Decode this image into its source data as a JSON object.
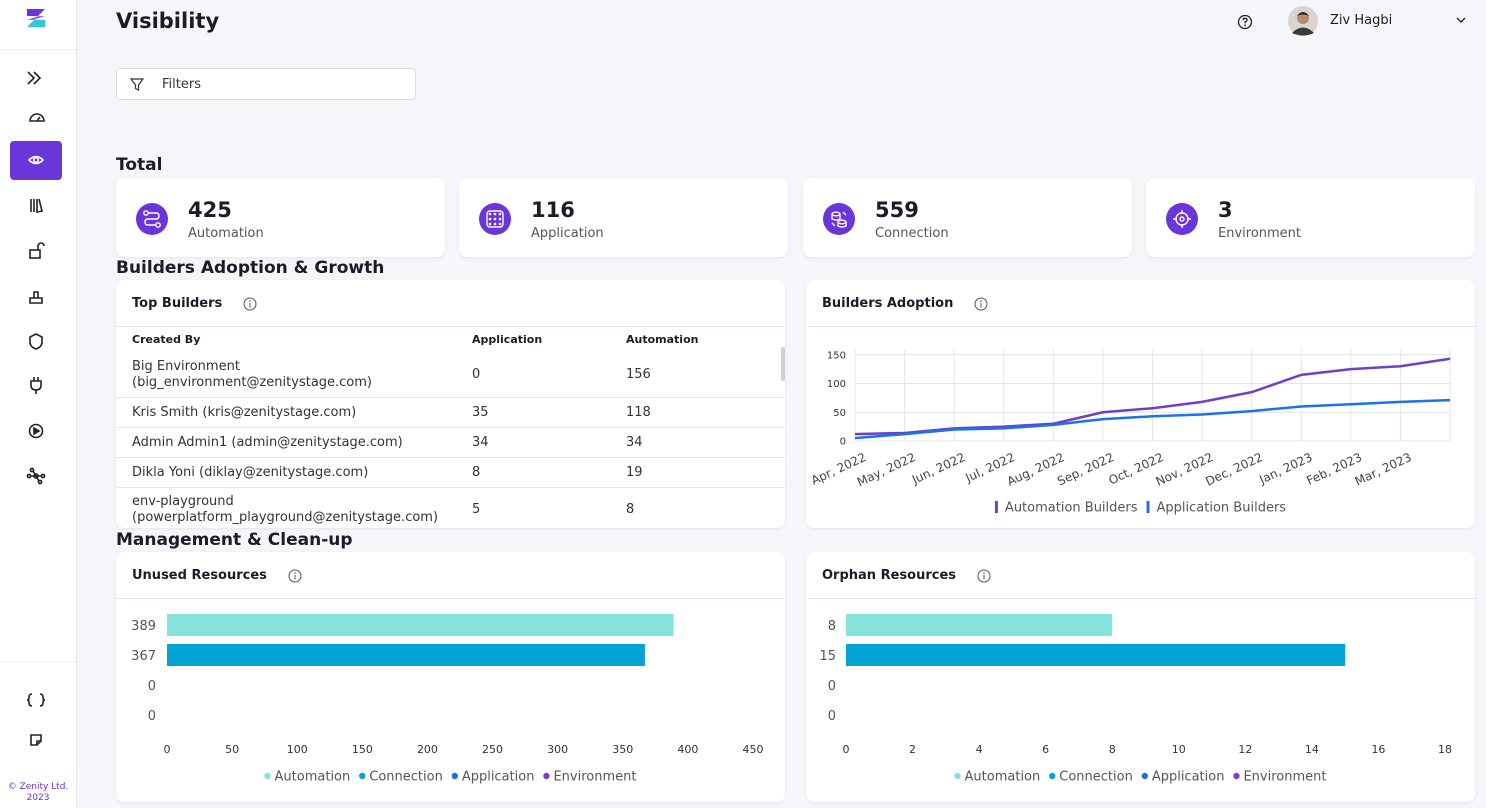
{
  "sidebar": {
    "copyright": "© Zenity Ltd. 2023"
  },
  "header": {
    "title": "Visibility",
    "user": "Ziv Hagbi",
    "filters": "Filters"
  },
  "sections": [
    "Total",
    "Builders Adoption & Growth",
    "Management & Clean-up"
  ],
  "stats": [
    {
      "value": 425,
      "label": "Automation"
    },
    {
      "value": 116,
      "label": "Application"
    },
    {
      "value": 559,
      "label": "Connection"
    },
    {
      "value": 3,
      "label": "Environment"
    }
  ],
  "top_builders": {
    "title": "Top Builders",
    "columns": [
      "Created By",
      "Application",
      "Automation"
    ],
    "rows": [
      [
        "Big Environment (big_environment@zenitystage.com)",
        0,
        156
      ],
      [
        "Kris Smith (kris@zenitystage.com)",
        35,
        118
      ],
      [
        "Admin Admin1 (admin@zenitystage.com)",
        34,
        34
      ],
      [
        "Dikla Yoni (diklay@zenitystage.com)",
        8,
        19
      ],
      [
        "env-playground (powerplatform_playground@zenitystage.com)",
        5,
        8
      ]
    ]
  },
  "chart_data": [
    {
      "type": "line",
      "title": "Builders Adoption",
      "categories": [
        "Apr, 2022",
        "May, 2022",
        "Jun, 2022",
        "Jul, 2022",
        "Aug, 2022",
        "Sep, 2022",
        "Oct, 2022",
        "Nov, 2022",
        "Dec, 2022",
        "Jan, 2023",
        "Feb, 2023",
        "Mar, 2023",
        null
      ],
      "series": [
        {
          "name": "Automation Builders",
          "color": "#6f3fc4",
          "values": [
            12,
            14,
            22,
            25,
            30,
            50,
            57,
            68,
            85,
            115,
            125,
            130,
            143
          ]
        },
        {
          "name": "Application Builders",
          "color": "#1a73e8",
          "values": [
            5,
            12,
            20,
            22,
            28,
            38,
            43,
            46,
            52,
            60,
            64,
            68,
            71
          ]
        }
      ],
      "ylim": [
        0,
        160
      ],
      "yticks": [
        0,
        50,
        100,
        150
      ],
      "grid": true,
      "legend": "bottom"
    },
    {
      "type": "bar",
      "orientation": "horizontal",
      "title": "Unused Resources",
      "categories": [
        "Automation",
        "Connection",
        "Application",
        "Environment"
      ],
      "colors": [
        "#86e3dc",
        "#00a3d3",
        "#1a6ee8",
        "#7b3fd8"
      ],
      "values": [
        389,
        367,
        0,
        0
      ],
      "xlim": [
        0,
        450
      ],
      "xticks": [
        0,
        50,
        100,
        150,
        200,
        250,
        300,
        350,
        400,
        450
      ],
      "legend": "bottom"
    },
    {
      "type": "bar",
      "orientation": "horizontal",
      "title": "Orphan Resources",
      "categories": [
        "Automation",
        "Connection",
        "Application",
        "Environment"
      ],
      "colors": [
        "#86e3dc",
        "#00a3d3",
        "#1a6ee8",
        "#7b3fd8"
      ],
      "values": [
        8,
        15,
        0,
        0
      ],
      "xlim": [
        0,
        18
      ],
      "xticks": [
        0,
        2,
        4,
        6,
        8,
        10,
        12,
        14,
        16,
        18
      ],
      "legend": "bottom"
    }
  ]
}
